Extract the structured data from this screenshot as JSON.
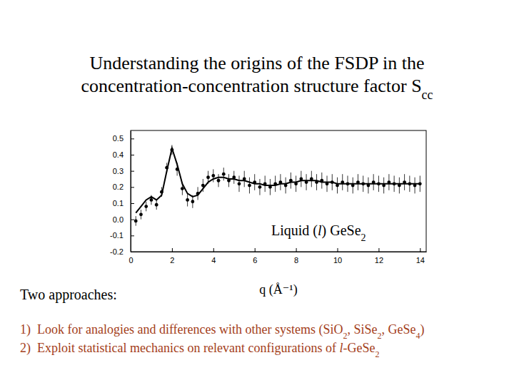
{
  "slide": {
    "title": [
      [
        "Understanding the origins of the FSDP in the"
      ],
      [
        "concentration-concentration structure factor S",
        {
          "sub": "cc"
        }
      ]
    ],
    "heading": "Two approaches:",
    "items": [
      {
        "number": "1)",
        "text": [
          "Look for analogies and differences with other systems (SiO",
          {
            "sub": "2"
          },
          ", SiSe",
          {
            "sub": "2"
          },
          ", GeSe",
          {
            "sub": "4"
          },
          ")"
        ]
      },
      {
        "number": "2)",
        "text": [
          "Exploit statistical mechanics on relevant configurations of ",
          {
            "italic": "l"
          },
          "-GeSe",
          {
            "sub": "2"
          }
        ]
      }
    ]
  },
  "chart_data": {
    "type": "line",
    "x_label": "q (Å⁻¹)",
    "annotation": [
      "Liquid (",
      {
        "italic": "l"
      },
      ") GeSe",
      {
        "sub": "2"
      }
    ],
    "x": [
      0.25,
      0.5,
      0.75,
      1,
      1.25,
      1.5,
      1.75,
      2,
      2.25,
      2.5,
      2.75,
      3,
      3.25,
      3.5,
      3.75,
      4,
      4.25,
      4.5,
      4.75,
      5,
      5.25,
      5.5,
      5.75,
      6,
      6.25,
      6.5,
      6.75,
      7,
      7.25,
      7.5,
      7.75,
      8,
      8.25,
      8.5,
      8.75,
      9,
      9.25,
      9.5,
      9.75,
      10,
      10.25,
      10.5,
      10.75,
      11,
      11.25,
      11.5,
      11.75,
      12,
      12.25,
      12.5,
      12.75,
      13,
      13.25,
      13.5,
      13.75,
      14
    ],
    "series": [
      {
        "type": "scatter",
        "marker": "circle",
        "color": "#000000",
        "values": [
          -0.01,
          0.03,
          0.08,
          0.12,
          0.09,
          0.17,
          0.32,
          0.43,
          0.31,
          0.19,
          0.12,
          0.11,
          0.16,
          0.21,
          0.26,
          0.27,
          0.24,
          0.28,
          0.24,
          0.26,
          0.22,
          0.25,
          0.21,
          0.23,
          0.2,
          0.22,
          0.2,
          0.22,
          0.23,
          0.21,
          0.24,
          0.22,
          0.25,
          0.23,
          0.25,
          0.23,
          0.24,
          0.22,
          0.23,
          0.21,
          0.23,
          0.22,
          0.21,
          0.23,
          0.22,
          0.21,
          0.23,
          0.22,
          0.21,
          0.23,
          0.22,
          0.21,
          0.23,
          0.22,
          0.21,
          0.22
        ],
        "error": [
          0.03,
          0.03,
          0.03,
          0.03,
          0.03,
          0.03,
          0.03,
          0.03,
          0.04,
          0.04,
          0.04,
          0.04,
          0.04,
          0.04,
          0.04,
          0.04,
          0.04,
          0.04,
          0.04,
          0.04,
          0.05,
          0.05,
          0.05,
          0.05,
          0.05,
          0.05,
          0.05,
          0.05,
          0.05,
          0.05,
          0.05,
          0.05,
          0.05,
          0.05,
          0.05,
          0.05,
          0.05,
          0.05,
          0.05,
          0.05,
          0.05,
          0.05,
          0.05,
          0.05,
          0.05,
          0.05,
          0.05,
          0.05,
          0.05,
          0.05,
          0.05,
          0.05,
          0.05,
          0.05,
          0.05,
          0.05
        ]
      },
      {
        "type": "line",
        "line_style": "solid",
        "color": "#000000",
        "values": [
          0.04,
          0.08,
          0.12,
          0.14,
          0.12,
          0.15,
          0.3,
          0.44,
          0.34,
          0.22,
          0.16,
          0.14,
          0.15,
          0.19,
          0.23,
          0.25,
          0.26,
          0.26,
          0.25,
          0.25,
          0.24,
          0.24,
          0.23,
          0.22,
          0.22,
          0.21,
          0.21,
          0.21,
          0.22,
          0.22,
          0.23,
          0.23,
          0.24,
          0.24,
          0.24,
          0.24,
          0.23,
          0.23,
          0.23,
          0.22,
          0.22,
          0.22,
          0.22,
          0.22,
          0.22,
          0.22,
          0.22,
          0.22,
          0.22,
          0.22,
          0.22,
          0.22,
          0.22,
          0.22,
          0.22,
          0.22
        ]
      }
    ],
    "xlim": [
      0,
      14.3
    ],
    "xticks": [
      0,
      2,
      4,
      6,
      8,
      10,
      12,
      14
    ],
    "ylim": [
      -0.2,
      0.55
    ],
    "yticks": [
      -0.2,
      -0.1,
      {
        "value": 0,
        "label": "0.0"
      },
      0.1,
      0.2,
      0.3,
      0.4,
      0.5
    ],
    "grid": false
  }
}
